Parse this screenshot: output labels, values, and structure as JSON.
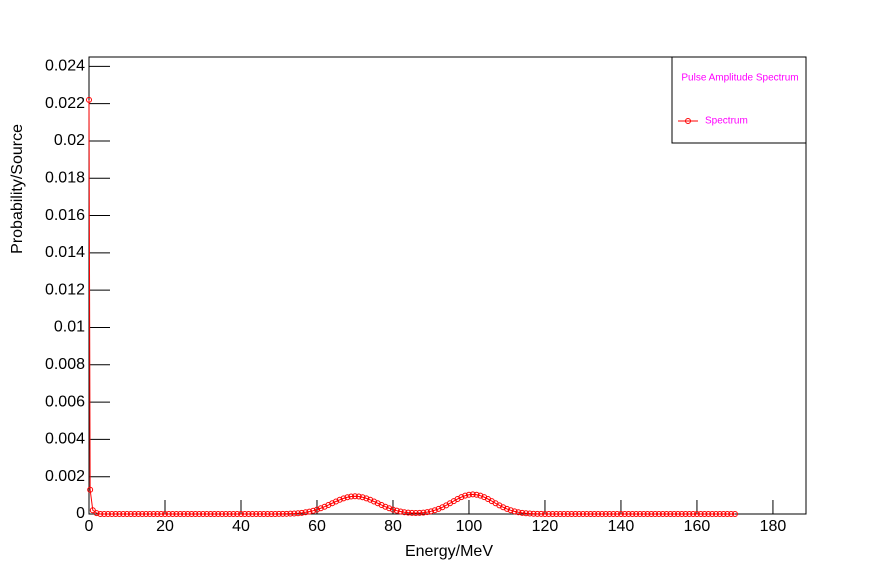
{
  "chart_data": {
    "type": "scatter",
    "legend_title": "Pulse Amplitude Spectrum",
    "xlabel": "Energy/MeV",
    "ylabel": "Probability/Source",
    "xlim": [
      0,
      188.7
    ],
    "ylim": [
      0,
      0.0245
    ],
    "xticks": [
      0,
      20,
      40,
      60,
      80,
      100,
      120,
      140,
      160,
      180
    ],
    "yticks": [
      0,
      0.002,
      0.004,
      0.006,
      0.008,
      0.01,
      0.012,
      0.014,
      0.016,
      0.018,
      0.02,
      0.022,
      0.024
    ],
    "legend": "top-right",
    "grid": false,
    "x": [
      0,
      0.3,
      1,
      2,
      3,
      4,
      5,
      6,
      7,
      8,
      9,
      10,
      11,
      12,
      13,
      14,
      15,
      16,
      17,
      18,
      19,
      20,
      21,
      22,
      23,
      24,
      25,
      26,
      27,
      28,
      29,
      30,
      31,
      32,
      33,
      34,
      35,
      36,
      37,
      38,
      39,
      40,
      41,
      42,
      43,
      44,
      45,
      46,
      47,
      48,
      49,
      50,
      51,
      52,
      53,
      54,
      55,
      56,
      57,
      58,
      59,
      60,
      61,
      62,
      63,
      64,
      65,
      66,
      67,
      68,
      69,
      70,
      71,
      72,
      73,
      74,
      75,
      76,
      77,
      78,
      79,
      80,
      81,
      82,
      83,
      84,
      85,
      86,
      87,
      88,
      89,
      90,
      91,
      92,
      93,
      94,
      95,
      96,
      97,
      98,
      99,
      100,
      101,
      102,
      103,
      104,
      105,
      106,
      107,
      108,
      109,
      110,
      111,
      112,
      113,
      114,
      115,
      116,
      117,
      118,
      119,
      120,
      121,
      122,
      123,
      124,
      125,
      126,
      127,
      128,
      129,
      130,
      131,
      132,
      133,
      134,
      135,
      136,
      137,
      138,
      139,
      140,
      141,
      142,
      143,
      144,
      145,
      146,
      147,
      148,
      149,
      150,
      151,
      152,
      153,
      154,
      155,
      156,
      157,
      158,
      159,
      160,
      161,
      162,
      163,
      164,
      165,
      166,
      167,
      168,
      169,
      170
    ],
    "series": [
      {
        "name": "Spectrum",
        "color": "#ff0000",
        "values": [
          0.0222,
          0.0013,
          0.0002,
          5e-05,
          0,
          0,
          0,
          0,
          0,
          0,
          0,
          0,
          0,
          0,
          0,
          0,
          0,
          0,
          0,
          0,
          0,
          0,
          0,
          0,
          0,
          0,
          0,
          0,
          0,
          0,
          0,
          0,
          0,
          0,
          0,
          0,
          0,
          0,
          0,
          0,
          0,
          0,
          0,
          0,
          0,
          0,
          0,
          0,
          0,
          0,
          0,
          4e-06,
          7e-06,
          1e-05,
          1.7e-05,
          2.7e-05,
          4.2e-05,
          6.2e-05,
          9.1e-05,
          0.000129,
          0.000177,
          0.000237,
          0.000309,
          0.000391,
          0.000481,
          0.000576,
          0.000671,
          0.000761,
          0.000838,
          0.000898,
          0.000937,
          0.00095,
          0.000937,
          0.000898,
          0.000838,
          0.000761,
          0.000671,
          0.000576,
          0.000481,
          0.000391,
          0.000309,
          0.000237,
          0.000178,
          0.000132,
          9.6e-05,
          7.1e-05,
          5.7e-05,
          5.2e-05,
          5.7e-05,
          7.4e-05,
          0.000101,
          0.000144,
          0.0002,
          0.000272,
          0.000361,
          0.000464,
          0.000576,
          0.000692,
          0.000804,
          0.000904,
          0.000982,
          0.001033,
          0.00105,
          0.001033,
          0.000982,
          0.000904,
          0.000804,
          0.000692,
          0.000576,
          0.000464,
          0.000361,
          0.000272,
          0.000198,
          0.00014,
          9.5e-05,
          6.3e-05,
          4e-05,
          2.5e-05,
          1.5e-05,
          9e-06,
          5e-06,
          0,
          0,
          0,
          0,
          0,
          0,
          0,
          0,
          0,
          0,
          0,
          0,
          0,
          0,
          0,
          0,
          0,
          0,
          0,
          0,
          0,
          0,
          0,
          0,
          0,
          0,
          0,
          0,
          0,
          0,
          0,
          0,
          0,
          0,
          0,
          0,
          0,
          0,
          0,
          0,
          0,
          0,
          0,
          0,
          0,
          0,
          0,
          0,
          0,
          0,
          0
        ]
      }
    ]
  }
}
